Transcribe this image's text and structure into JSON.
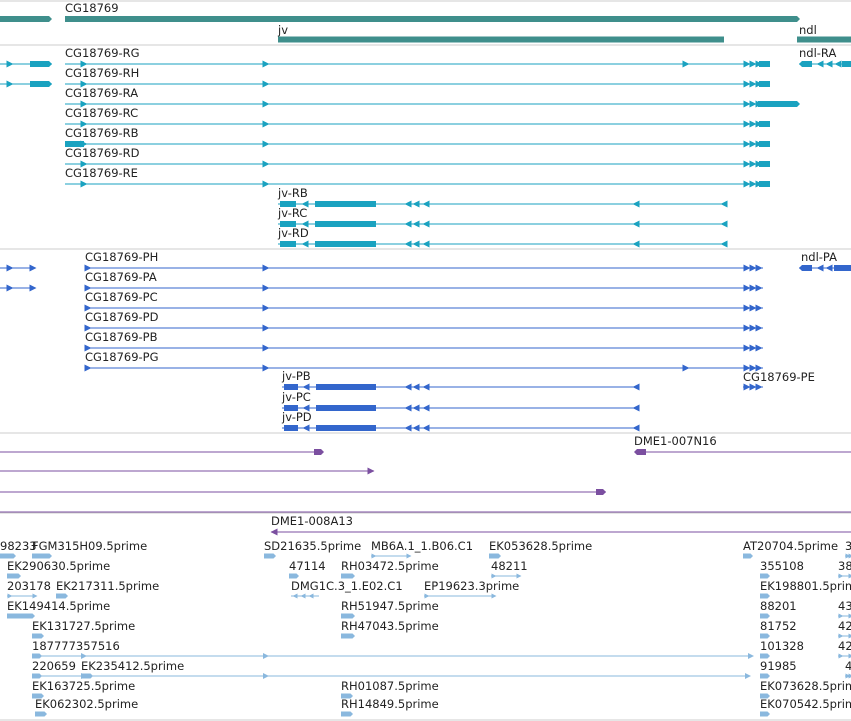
{
  "colors": {
    "gene": "#3f8f8c",
    "transcript": "#1aa2c0",
    "protein": "#3366cc",
    "clone": "#7b4fa0",
    "est": "#8ab8de",
    "separator": "#cccccc"
  },
  "genes": [
    {
      "label": "CG18769"
    },
    {
      "label": "jv"
    },
    {
      "label": "ndl"
    }
  ],
  "transcripts": [
    {
      "label": "CG18769-RG"
    },
    {
      "label": "CG18769-RH"
    },
    {
      "label": "CG18769-RA"
    },
    {
      "label": "CG18769-RC"
    },
    {
      "label": "CG18769-RB"
    },
    {
      "label": "CG18769-RD"
    },
    {
      "label": "CG18769-RE"
    },
    {
      "label": "jv-RB"
    },
    {
      "label": "jv-RC"
    },
    {
      "label": "jv-RD"
    },
    {
      "label": "ndl-RA"
    }
  ],
  "proteins": [
    {
      "label": "CG18769-PH"
    },
    {
      "label": "CG18769-PA"
    },
    {
      "label": "CG18769-PC"
    },
    {
      "label": "CG18769-PD"
    },
    {
      "label": "CG18769-PB"
    },
    {
      "label": "CG18769-PG"
    },
    {
      "label": "jv-PB"
    },
    {
      "label": "jv-PC"
    },
    {
      "label": "jv-PD"
    },
    {
      "label": "ndl-PA"
    },
    {
      "label": "CG18769-PE"
    }
  ],
  "clones": [
    {
      "label": "DME1-007N16"
    },
    {
      "label": "DME1-008A13"
    }
  ],
  "ests": [
    {
      "label": "98233"
    },
    {
      "label": "FGM315H09.5prime"
    },
    {
      "label": "SD21635.5prime"
    },
    {
      "label": "MB6A.1_1.B06.C1"
    },
    {
      "label": "EK053628.5prime"
    },
    {
      "label": "AT20704.5prime"
    },
    {
      "label": "3"
    },
    {
      "label": "EK290630.5prime"
    },
    {
      "label": "47114"
    },
    {
      "label": "RH03472.5prime"
    },
    {
      "label": "48211"
    },
    {
      "label": "355108"
    },
    {
      "label": "38"
    },
    {
      "label": "203178"
    },
    {
      "label": "EK217311.5prime"
    },
    {
      "label": "DMG1C.3_1.E02.C1"
    },
    {
      "label": "EP19623.3prime"
    },
    {
      "label": "EK198801.5prime"
    },
    {
      "label": "EK149414.5prime"
    },
    {
      "label": "RH51947.5prime"
    },
    {
      "label": "88201"
    },
    {
      "label": "43"
    },
    {
      "label": "EK131727.5prime"
    },
    {
      "label": "RH47043.5prime"
    },
    {
      "label": "81752"
    },
    {
      "label": "42"
    },
    {
      "label": "187777357516"
    },
    {
      "label": "101328"
    },
    {
      "label": "42"
    },
    {
      "label": "220659"
    },
    {
      "label": "EK235412.5prime"
    },
    {
      "label": "91985"
    },
    {
      "label": "4"
    },
    {
      "label": "EK163725.5prime"
    },
    {
      "label": "RH01087.5prime"
    },
    {
      "label": "EK073628.5prime"
    },
    {
      "label": "EK062302.5prime"
    },
    {
      "label": "RH14849.5prime"
    },
    {
      "label": "EK070542.5prime"
    }
  ]
}
